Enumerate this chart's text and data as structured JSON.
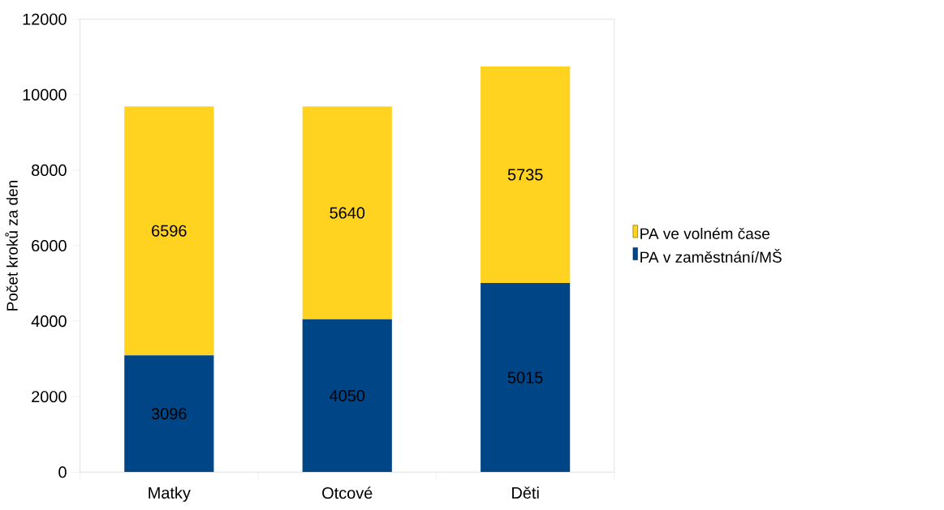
{
  "chart_data": {
    "type": "bar",
    "stacked": true,
    "ylabel": "Počet kroků za den",
    "categories": [
      "Matky",
      "Otcové",
      "Děti"
    ],
    "series": [
      {
        "name": "PA v zaměstnání/MŠ",
        "color": "#004586",
        "values": [
          3096,
          4050,
          5015
        ]
      },
      {
        "name": "PA ve volném čase",
        "color": "#ffd320",
        "values": [
          6596,
          5640,
          5735
        ]
      }
    ],
    "ylim": [
      0,
      12000
    ],
    "yticks": [
      0,
      2000,
      4000,
      6000,
      8000,
      10000,
      12000
    ],
    "data_labels": true,
    "legend": "right",
    "grid": false
  }
}
